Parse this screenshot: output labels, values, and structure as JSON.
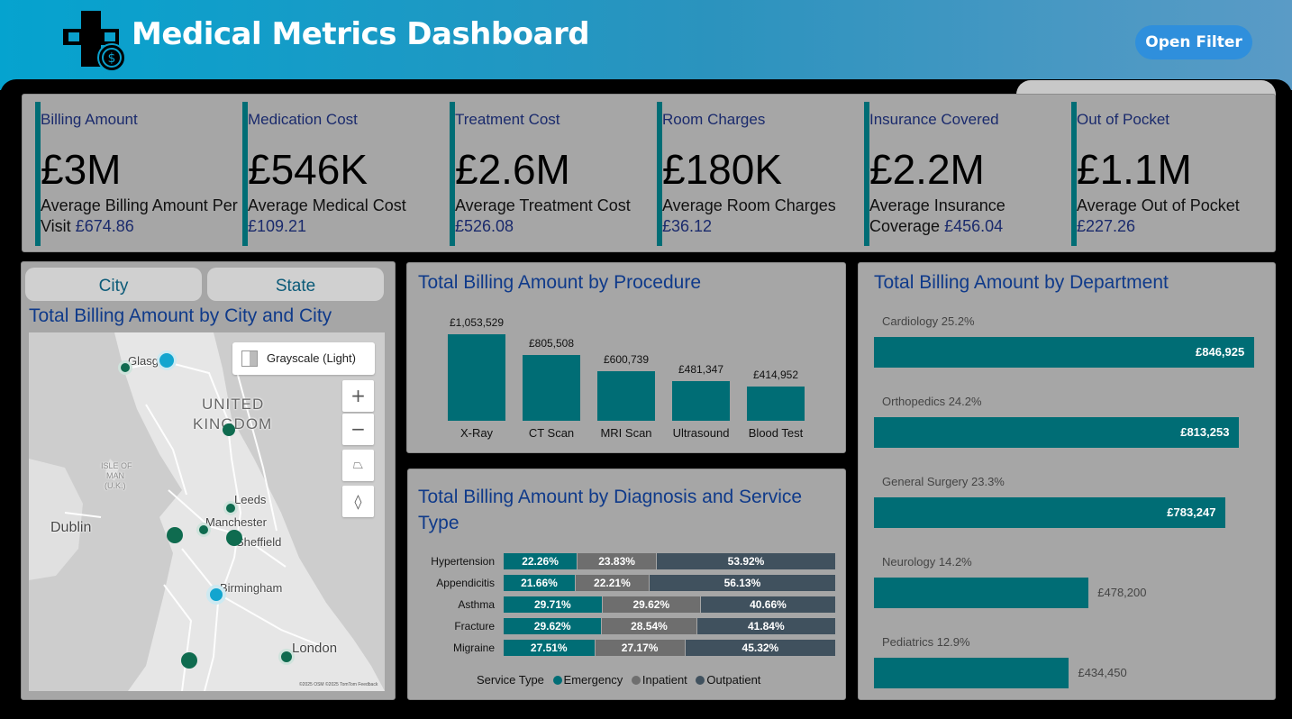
{
  "header": {
    "title": "Medical Metrics Dashboard",
    "filter_label": "Open Filter"
  },
  "colors": {
    "teal": "#006d75",
    "accent_blue": "#2f8fdc",
    "inpatient": "#6e6e6e",
    "outpatient": "#40515e"
  },
  "kpis": [
    {
      "label": "Billing Amount",
      "value": "£3M",
      "sub": "Average Billing Amount Per Visit",
      "avg": "£674.86"
    },
    {
      "label": "Medication Cost",
      "value": "£546K",
      "sub": "Average Medical Cost",
      "avg": "£109.21"
    },
    {
      "label": "Treatment Cost",
      "value": "£2.6M",
      "sub": "Average Treatment Cost",
      "avg": "£526.08"
    },
    {
      "label": "Room Charges",
      "value": "£180K",
      "sub": "Average Room Charges",
      "avg": "£36.12"
    },
    {
      "label": "Insurance Covered",
      "value": "£2.2M",
      "sub": "Average Insurance Coverage",
      "avg": "£456.04"
    },
    {
      "label": "Out of Pocket",
      "value": "£1.1M",
      "sub": "Average Out of Pocket",
      "avg": "£227.26"
    }
  ],
  "map_panel": {
    "tabs": [
      "City",
      "State"
    ],
    "title": "Total Billing Amount by City and City",
    "style_label": "Grayscale (Light)",
    "labels": [
      "Glasgow",
      "UNITED",
      "KINGDOM",
      "ISLE OF",
      "MAN",
      "(U.K.)",
      "Dublin",
      "Leeds",
      "Manchester",
      "Sheffield",
      "Birmingham",
      "London"
    ],
    "attribution": "©2025 OSM  ©2025 TomTom  Feedback",
    "controls": [
      "+",
      "−",
      "⏢",
      "◊"
    ]
  },
  "procedure_chart": {
    "title": "Total Billing Amount by Procedure",
    "chart_data": {
      "type": "bar",
      "categories": [
        "X-Ray",
        "CT Scan",
        "MRI Scan",
        "Ultrasound",
        "Blood Test"
      ],
      "values": [
        1053529,
        805508,
        600739,
        481347,
        414952
      ],
      "value_labels": [
        "£1,053,529",
        "£805,508",
        "£600,739",
        "£481,347",
        "£414,952"
      ]
    }
  },
  "diagnosis_chart": {
    "title_line1": "Total Billing Amount by Diagnosis and Service",
    "title_line2": "Type",
    "legend_title": "Service Type",
    "chart_data": {
      "type": "bar",
      "stacked": "100%",
      "categories": [
        "Hypertension",
        "Appendicitis",
        "Asthma",
        "Fracture",
        "Migraine"
      ],
      "series": [
        {
          "name": "Emergency",
          "values": [
            22.26,
            21.66,
            29.71,
            29.62,
            27.51
          ]
        },
        {
          "name": "Inpatient",
          "values": [
            23.83,
            22.21,
            29.62,
            28.54,
            27.17
          ]
        },
        {
          "name": "Outpatient",
          "values": [
            53.92,
            56.13,
            40.66,
            41.84,
            45.32
          ]
        }
      ]
    }
  },
  "department_chart": {
    "title": "Total Billing Amount by Department",
    "chart_data": {
      "type": "bar",
      "orientation": "horizontal",
      "categories": [
        "Cardiology",
        "Orthopedics",
        "General Surgery",
        "Neurology",
        "Pediatrics"
      ],
      "shares": [
        "25.2%",
        "24.2%",
        "23.3%",
        "14.2%",
        "12.9%"
      ],
      "values": [
        846925,
        813253,
        783247,
        478200,
        434450
      ],
      "value_labels": [
        "£846,925",
        "£813,253",
        "£783,247",
        "£478,200",
        "£434,450"
      ]
    }
  }
}
